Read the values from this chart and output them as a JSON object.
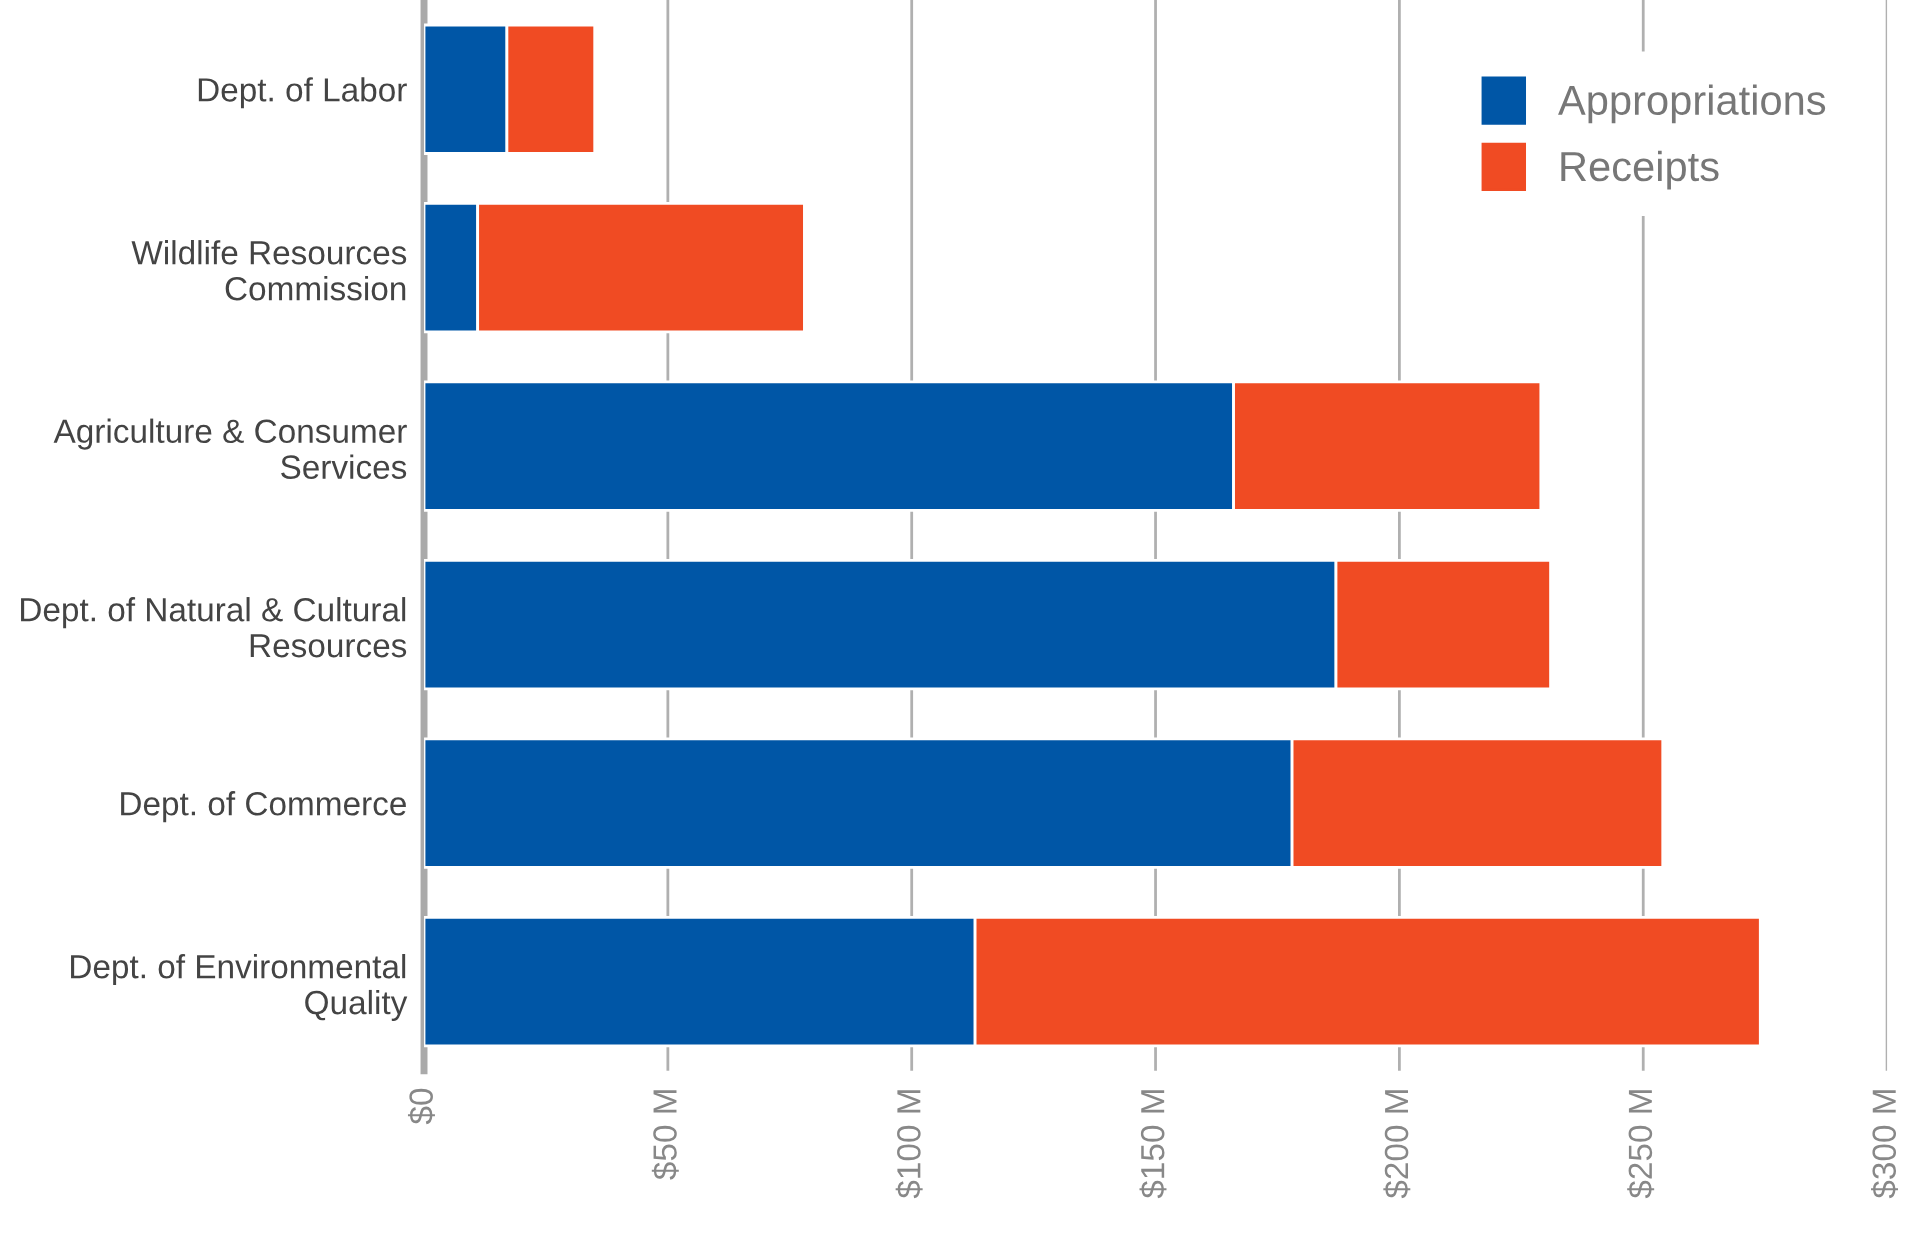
{
  "chart_data": {
    "type": "bar",
    "orientation": "horizontal",
    "stacked": true,
    "categories": [
      "Dept. of Labor",
      "Wildlife Resources\nCommission",
      "Agriculture & Consumer\nServices",
      "Dept. of Natural & Cultural\nResources",
      "Dept. of Commerce",
      "Dept. of Environmental\nQuality"
    ],
    "series": [
      {
        "name": "Appropriations",
        "color": "#0056a6",
        "values": [
          17,
          11,
          166,
          187,
          178,
          113
        ]
      },
      {
        "name": "Receipts",
        "color": "#f04b23",
        "values": [
          18,
          67,
          63,
          44,
          76,
          161
        ]
      }
    ],
    "xlim": [
      0,
      300
    ],
    "xticks": [
      {
        "value": 0,
        "label": "$0"
      },
      {
        "value": 50,
        "label": "$50 M"
      },
      {
        "value": 100,
        "label": "$100 M"
      },
      {
        "value": 150,
        "label": "$150 M"
      },
      {
        "value": 200,
        "label": "$200 M"
      },
      {
        "value": 250,
        "label": "$250 M"
      },
      {
        "value": 300,
        "label": "$300 M"
      }
    ],
    "grid": "x",
    "legend": "top right"
  }
}
